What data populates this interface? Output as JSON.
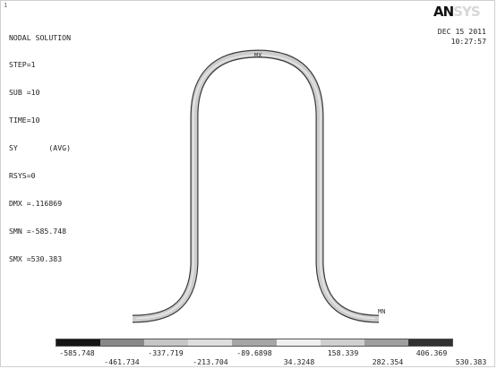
{
  "window_number": "1",
  "info": {
    "title": "NODAL SOLUTION",
    "lines": [
      "STEP=1",
      "SUB =10",
      "TIME=10",
      "SY       (AVG)",
      "RSYS=0",
      "DMX =.116869",
      "SMN =-585.748",
      "SMX =530.383"
    ]
  },
  "logo": {
    "dark": "AN",
    "light": "SYS"
  },
  "date": "DEC 15 2011",
  "time": "10:27:57",
  "markers": {
    "max": "MX",
    "min": "MN"
  },
  "legend": {
    "colors": [
      "#151515",
      "#888888",
      "#c6c6c6",
      "#dedede",
      "#a6a6a6",
      "#efefef",
      "#cfcfcf",
      "#9e9e9e",
      "#303030"
    ],
    "top_labels": [
      "-585.748",
      "-337.719",
      "-89.6898",
      "158.339",
      "406.369"
    ],
    "bottom_labels": [
      "-461.734",
      "-213.704",
      "34.3248",
      "282.354",
      "530.383"
    ]
  }
}
